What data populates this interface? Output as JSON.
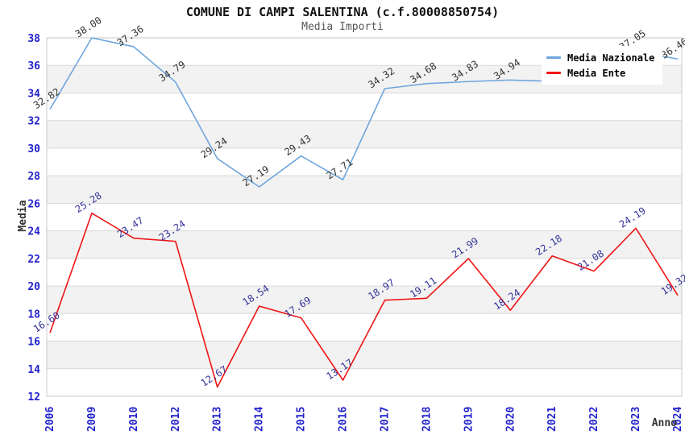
{
  "title": "COMUNE DI CAMPI SALENTINA (c.f.80008850754)",
  "subtitle": "Media Importi",
  "colors": {
    "background": "#ffffff",
    "band": "#f2f2f2",
    "gridline": "#d9d9d9",
    "plot_border": "#c9c9c9",
    "axis_tick_text": "#2222cc",
    "title_text": "#111111",
    "subtitle_text": "#555555",
    "blue_series": "#6ea6dd",
    "red_series": "#f01414"
  },
  "chart_data": {
    "type": "line",
    "title": "COMUNE DI CAMPI SALENTINA (c.f.80008850754)",
    "subtitle": "Media Importi",
    "xlabel": "Anno",
    "ylabel": "Media",
    "ylim": [
      12,
      38
    ],
    "ytick_step": 2,
    "grid": "horizontal gridlines with alternating shaded bands",
    "band_starts": [
      14,
      18,
      22,
      26,
      30,
      34
    ],
    "legend_position": "top-right",
    "categories": [
      "2006",
      "2009",
      "2010",
      "2012",
      "2013",
      "2014",
      "2015",
      "2016",
      "2017",
      "2018",
      "2019",
      "2020",
      "2021",
      "2022",
      "2023",
      "2024"
    ],
    "series": [
      {
        "id": "media-nazionale",
        "name": "Media Nazionale",
        "color": "#6ea6dd",
        "label_color": "#333333",
        "values": [
          32.82,
          38.0,
          37.36,
          34.79,
          29.24,
          27.19,
          29.43,
          27.71,
          34.32,
          34.68,
          34.83,
          34.94,
          34.85,
          34.65,
          37.05,
          36.46
        ],
        "labels": [
          "32.82",
          "38.00",
          "37.36",
          "34.79",
          "29.24",
          "27.19",
          "29.43",
          "27.71",
          "34.32",
          "34.68",
          "34.83",
          "34.94",
          null,
          null,
          "37.05",
          "36.46"
        ],
        "note": "2021 and 2022 point labels hidden behind legend box; their values are estimated from line pixels"
      },
      {
        "id": "media-ente",
        "name": "Media Ente",
        "color": "#f01414",
        "label_color": "#333399",
        "values": [
          16.6,
          25.28,
          23.47,
          23.24,
          12.67,
          18.54,
          17.69,
          13.17,
          18.97,
          19.11,
          21.99,
          18.24,
          22.18,
          21.08,
          24.19,
          19.32
        ],
        "labels": [
          "16.60",
          "25.28",
          "23.47",
          "23.24",
          "12.67",
          "18.54",
          "17.69",
          "13.17",
          "18.97",
          "19.11",
          "21.99",
          "18.24",
          "22.18",
          "21.08",
          "24.19",
          "19.32"
        ]
      }
    ]
  }
}
